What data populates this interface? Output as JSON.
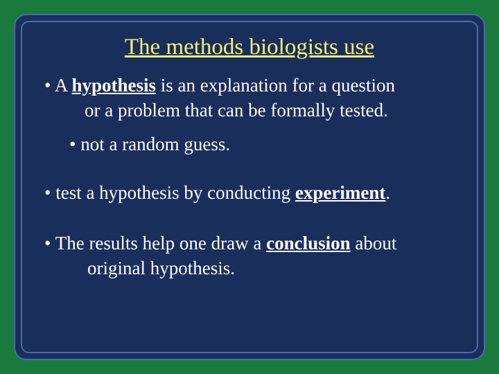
{
  "colors": {
    "page_background": "#1a7a3e",
    "panel_background": "#1a2e5c",
    "panel_border": "#4a6ba8",
    "title_color": "#f5f17a",
    "text_color": "#ffffff"
  },
  "typography": {
    "title_fontsize": 33,
    "body_fontsize": 27,
    "font_family": "Times New Roman"
  },
  "title": "The methods biologists use",
  "bullets": {
    "b1_pre": "• A ",
    "b1_kw": "hypothesis",
    "b1_post": " is an explanation for a question",
    "b1_line2": "or a problem that can be formally tested.",
    "b2": "• not a random guess.",
    "b3_pre": "•  test a hypothesis by conducting ",
    "b3_kw": "experiment",
    "b3_post": ".",
    "b4_pre": "• The results help one draw a ",
    "b4_kw": "conclusion",
    "b4_post": " about",
    "b4_line2": "original hypothesis."
  }
}
